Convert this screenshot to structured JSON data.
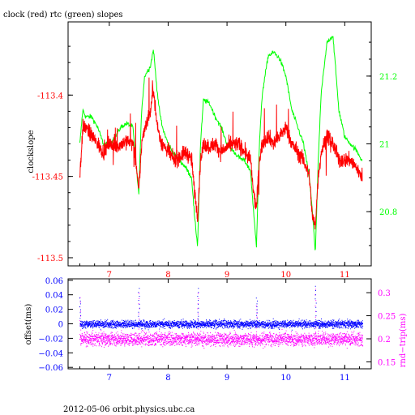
{
  "title": "clock (red) rtc (green) slopes",
  "footer": "2012-05-06  orbit.physics.ubc.ca",
  "colors": {
    "clock": "#ff0000",
    "rtc": "#00ff00",
    "offset": "#0000ff",
    "rndtrip": "#ff00ff",
    "axis": "#000000"
  },
  "chart_data": [
    {
      "type": "line",
      "title": "clock (red) rtc (green) slopes",
      "xlabel": "",
      "ylabel": "clockslope",
      "y2label": "",
      "xlim": [
        6.3,
        11.45
      ],
      "ylim": [
        -113.505,
        -113.355
      ],
      "y2lim": [
        20.64,
        21.36
      ],
      "x_ticks": [
        "7",
        "8",
        "9",
        "10",
        "11"
      ],
      "y_ticks": [
        "-113.4",
        "-113.45",
        "-113.5"
      ],
      "y2_ticks": [
        "21.2",
        "21",
        "20.8"
      ],
      "grid": false,
      "series": [
        {
          "name": "clock",
          "axis": "left",
          "x": [
            6.5,
            6.55,
            6.6,
            6.7,
            6.8,
            6.9,
            7.0,
            7.1,
            7.2,
            7.3,
            7.4,
            7.45,
            7.5,
            7.55,
            7.6,
            7.7,
            7.75,
            7.8,
            7.85,
            7.9,
            8.0,
            8.1,
            8.2,
            8.3,
            8.4,
            8.45,
            8.5,
            8.55,
            8.6,
            8.7,
            8.8,
            8.9,
            9.0,
            9.1,
            9.2,
            9.3,
            9.4,
            9.45,
            9.5,
            9.55,
            9.6,
            9.7,
            9.8,
            9.9,
            10.0,
            10.1,
            10.2,
            10.3,
            10.4,
            10.45,
            10.5,
            10.55,
            10.6,
            10.7,
            10.8,
            10.9,
            11.0,
            11.1,
            11.2,
            11.3
          ],
          "values": [
            -113.45,
            -113.42,
            -113.42,
            -113.425,
            -113.43,
            -113.435,
            -113.43,
            -113.432,
            -113.43,
            -113.428,
            -113.43,
            -113.44,
            -113.46,
            -113.43,
            -113.42,
            -113.41,
            -113.395,
            -113.415,
            -113.425,
            -113.43,
            -113.435,
            -113.44,
            -113.438,
            -113.435,
            -113.44,
            -113.46,
            -113.475,
            -113.44,
            -113.43,
            -113.432,
            -113.43,
            -113.435,
            -113.432,
            -113.43,
            -113.43,
            -113.435,
            -113.44,
            -113.46,
            -113.47,
            -113.44,
            -113.43,
            -113.425,
            -113.43,
            -113.425,
            -113.42,
            -113.43,
            -113.435,
            -113.44,
            -113.45,
            -113.475,
            -113.48,
            -113.45,
            -113.435,
            -113.425,
            -113.43,
            -113.44,
            -113.44,
            -113.44,
            -113.445,
            -113.45
          ]
        },
        {
          "name": "rtc",
          "axis": "right",
          "x": [
            6.5,
            6.55,
            6.6,
            6.7,
            6.8,
            6.9,
            7.0,
            7.1,
            7.2,
            7.3,
            7.4,
            7.45,
            7.5,
            7.55,
            7.6,
            7.7,
            7.75,
            7.8,
            7.85,
            7.9,
            8.0,
            8.1,
            8.2,
            8.3,
            8.4,
            8.45,
            8.5,
            8.55,
            8.6,
            8.7,
            8.8,
            8.9,
            9.0,
            9.1,
            9.2,
            9.3,
            9.4,
            9.45,
            9.5,
            9.55,
            9.6,
            9.7,
            9.8,
            9.9,
            10.0,
            10.1,
            10.2,
            10.3,
            10.4,
            10.45,
            10.5,
            10.55,
            10.6,
            10.7,
            10.8,
            10.9,
            11.0,
            11.1,
            11.2,
            11.3
          ],
          "values": [
            21.0,
            21.1,
            21.08,
            21.08,
            21.05,
            21.0,
            21.0,
            21.02,
            21.05,
            21.06,
            21.05,
            20.95,
            20.85,
            21.1,
            21.2,
            21.23,
            21.28,
            21.18,
            21.1,
            21.05,
            21.0,
            20.97,
            20.95,
            20.93,
            20.9,
            20.78,
            20.7,
            21.0,
            21.13,
            21.12,
            21.08,
            21.05,
            21.0,
            20.98,
            20.96,
            20.95,
            20.92,
            20.8,
            20.7,
            21.0,
            21.15,
            21.26,
            21.27,
            21.25,
            21.2,
            21.1,
            21.05,
            21.0,
            20.9,
            20.8,
            20.68,
            20.95,
            21.15,
            21.3,
            21.32,
            21.1,
            21.02,
            21.0,
            20.98,
            20.95
          ]
        }
      ]
    },
    {
      "type": "scatter",
      "title": "",
      "xlabel": "",
      "ylabel": "offset(ms)",
      "y2label": "rnd−trip(ms)",
      "xlim": [
        6.3,
        11.45
      ],
      "ylim": [
        -0.062,
        0.062
      ],
      "y2lim": [
        0.135,
        0.33
      ],
      "x_ticks": [
        "7",
        "8",
        "9",
        "10",
        "11"
      ],
      "y_ticks": [
        "0.06",
        "0.04",
        "0.02",
        "0",
        "−0.02",
        "−0.04",
        "−0.06"
      ],
      "y2_ticks": [
        "0.3",
        "0.25",
        "0.2",
        "0.15"
      ],
      "grid": false,
      "series": [
        {
          "name": "offset",
          "axis": "left",
          "center": 0.0,
          "spread": 0.008,
          "spikes_x": [
            6.5,
            7.5,
            8.5,
            9.5,
            10.5
          ],
          "spikes_y": [
            0.04,
            0.055,
            0.055,
            0.04,
            0.058
          ]
        },
        {
          "name": "rnd-trip",
          "axis": "right",
          "center": 0.2,
          "spread": 0.02,
          "spikes_x": [
            6.5,
            7.5,
            8.5,
            9.5,
            10.5
          ],
          "spikes_y": [
            0.3,
            0.31,
            0.31,
            0.28,
            0.32
          ]
        }
      ]
    }
  ]
}
